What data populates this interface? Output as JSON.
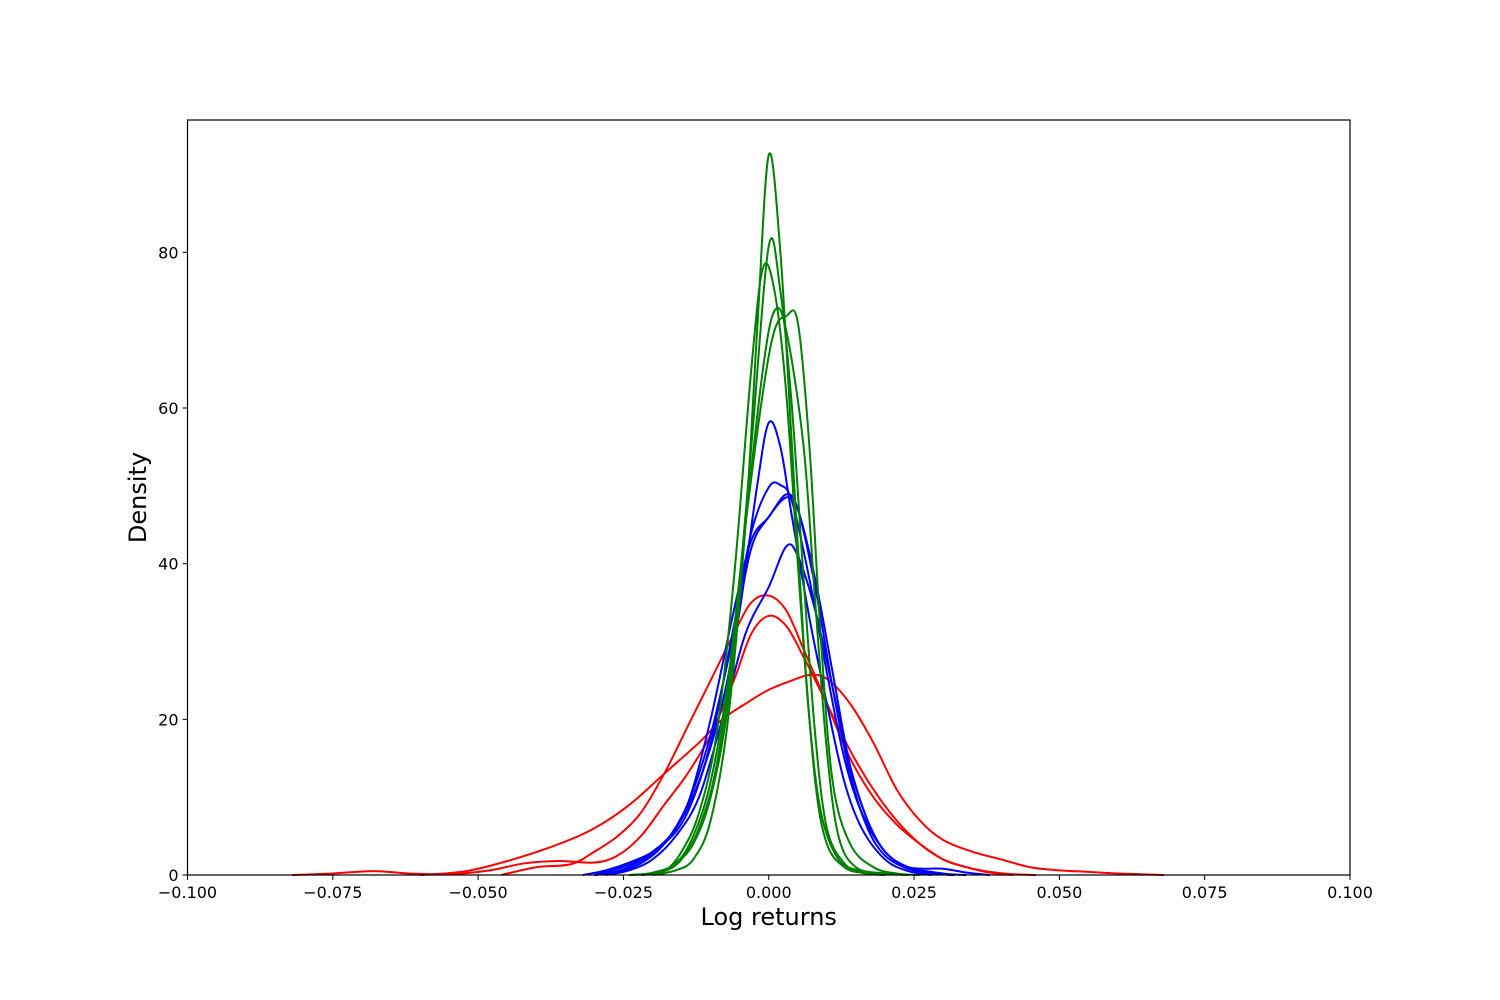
{
  "chart_data": {
    "type": "line",
    "title": "",
    "xlabel": "Log returns",
    "ylabel": "Density",
    "xlim": [
      -0.1,
      0.1
    ],
    "ylim": [
      0,
      97
    ],
    "xticks": [
      -0.1,
      -0.075,
      -0.05,
      -0.025,
      0.0,
      0.025,
      0.05,
      0.075,
      0.1
    ],
    "xtick_labels": [
      "−0.100",
      "−0.075",
      "−0.050",
      "−0.025",
      "0.000",
      "0.025",
      "0.050",
      "0.075",
      "0.100"
    ],
    "yticks": [
      0,
      20,
      40,
      60,
      80
    ],
    "ytick_labels": [
      "0",
      "20",
      "40",
      "60",
      "80"
    ],
    "grid": false,
    "legend": "none",
    "colors": {
      "red": "#ff0000",
      "blue": "#0000ff",
      "green": "#008000"
    },
    "series": [
      {
        "color": "red",
        "points": [
          [
            -0.082,
            0
          ],
          [
            -0.075,
            0.2
          ],
          [
            -0.068,
            0.5
          ],
          [
            -0.062,
            0.2
          ],
          [
            -0.055,
            0.1
          ],
          [
            -0.048,
            0.6
          ],
          [
            -0.042,
            1.5
          ],
          [
            -0.036,
            1.8
          ],
          [
            -0.03,
            1.6
          ],
          [
            -0.026,
            2.5
          ],
          [
            -0.022,
            5
          ],
          [
            -0.018,
            9
          ],
          [
            -0.014,
            13
          ],
          [
            -0.01,
            18
          ],
          [
            -0.006,
            25
          ],
          [
            -0.003,
            31
          ],
          [
            0.0,
            33.3
          ],
          [
            0.003,
            32
          ],
          [
            0.006,
            28
          ],
          [
            0.01,
            22
          ],
          [
            0.014,
            16
          ],
          [
            0.018,
            11
          ],
          [
            0.022,
            7
          ],
          [
            0.026,
            4
          ],
          [
            0.03,
            2
          ],
          [
            0.034,
            1
          ],
          [
            0.038,
            0.4
          ],
          [
            0.042,
            0.1
          ],
          [
            0.046,
            0
          ]
        ]
      },
      {
        "color": "red",
        "points": [
          [
            -0.06,
            0
          ],
          [
            -0.052,
            0.5
          ],
          [
            -0.044,
            2
          ],
          [
            -0.036,
            4
          ],
          [
            -0.03,
            6
          ],
          [
            -0.024,
            9
          ],
          [
            -0.018,
            13
          ],
          [
            -0.012,
            17
          ],
          [
            -0.008,
            20
          ],
          [
            -0.004,
            22
          ],
          [
            0.0,
            23.8
          ],
          [
            0.004,
            25
          ],
          [
            0.007,
            25.7
          ],
          [
            0.01,
            25.2
          ],
          [
            0.014,
            22
          ],
          [
            0.018,
            17
          ],
          [
            0.022,
            11
          ],
          [
            0.026,
            7
          ],
          [
            0.03,
            4.5
          ],
          [
            0.035,
            3
          ],
          [
            0.04,
            2
          ],
          [
            0.045,
            1
          ],
          [
            0.05,
            0.6
          ],
          [
            0.055,
            0.4
          ],
          [
            0.06,
            0.2
          ],
          [
            0.068,
            0
          ]
        ]
      },
      {
        "color": "red",
        "points": [
          [
            -0.046,
            0
          ],
          [
            -0.04,
            1
          ],
          [
            -0.034,
            1.4
          ],
          [
            -0.03,
            3
          ],
          [
            -0.026,
            5
          ],
          [
            -0.022,
            8
          ],
          [
            -0.018,
            13
          ],
          [
            -0.014,
            19
          ],
          [
            -0.01,
            25
          ],
          [
            -0.006,
            31
          ],
          [
            -0.003,
            35
          ],
          [
            0.0,
            35.9
          ],
          [
            0.003,
            34
          ],
          [
            0.006,
            29
          ],
          [
            0.01,
            22
          ],
          [
            0.014,
            15
          ],
          [
            0.018,
            10
          ],
          [
            0.022,
            6.5
          ],
          [
            0.026,
            4
          ],
          [
            0.03,
            2
          ],
          [
            0.034,
            1
          ],
          [
            0.038,
            0.3
          ],
          [
            0.042,
            0
          ]
        ]
      },
      {
        "color": "blue",
        "points": [
          [
            -0.032,
            0
          ],
          [
            -0.028,
            0.6
          ],
          [
            -0.024,
            1.6
          ],
          [
            -0.02,
            3
          ],
          [
            -0.016,
            6
          ],
          [
            -0.012,
            12
          ],
          [
            -0.008,
            22
          ],
          [
            -0.005,
            34
          ],
          [
            -0.002,
            50
          ],
          [
            0.0,
            58.1
          ],
          [
            0.002,
            55
          ],
          [
            0.004,
            46
          ],
          [
            0.007,
            33
          ],
          [
            0.01,
            22
          ],
          [
            0.013,
            12
          ],
          [
            0.016,
            6
          ],
          [
            0.02,
            2
          ],
          [
            0.024,
            0.5
          ],
          [
            0.028,
            0
          ]
        ]
      },
      {
        "color": "blue",
        "points": [
          [
            -0.03,
            0
          ],
          [
            -0.026,
            0.8
          ],
          [
            -0.022,
            2
          ],
          [
            -0.018,
            4
          ],
          [
            -0.014,
            8
          ],
          [
            -0.01,
            17
          ],
          [
            -0.006,
            32
          ],
          [
            -0.003,
            44
          ],
          [
            0.0,
            49.8
          ],
          [
            0.002,
            50.1
          ],
          [
            0.004,
            48
          ],
          [
            0.007,
            38
          ],
          [
            0.01,
            26
          ],
          [
            0.013,
            15
          ],
          [
            0.016,
            8
          ],
          [
            0.02,
            3
          ],
          [
            0.024,
            1
          ],
          [
            0.028,
            0.2
          ],
          [
            0.032,
            0
          ]
        ]
      },
      {
        "color": "blue",
        "points": [
          [
            -0.03,
            0
          ],
          [
            -0.026,
            0.5
          ],
          [
            -0.022,
            1.8
          ],
          [
            -0.018,
            4
          ],
          [
            -0.014,
            9
          ],
          [
            -0.01,
            20
          ],
          [
            -0.006,
            34
          ],
          [
            -0.003,
            43
          ],
          [
            0.0,
            46
          ],
          [
            0.003,
            48.9
          ],
          [
            0.005,
            47
          ],
          [
            0.008,
            38
          ],
          [
            0.011,
            26
          ],
          [
            0.014,
            14
          ],
          [
            0.017,
            7
          ],
          [
            0.02,
            3
          ],
          [
            0.024,
            1
          ],
          [
            0.03,
            0.8
          ],
          [
            0.034,
            0.3
          ],
          [
            0.038,
            0
          ]
        ]
      },
      {
        "color": "blue",
        "points": [
          [
            -0.028,
            0
          ],
          [
            -0.024,
            0.6
          ],
          [
            -0.02,
            2
          ],
          [
            -0.016,
            5
          ],
          [
            -0.012,
            10
          ],
          [
            -0.008,
            20
          ],
          [
            -0.004,
            31
          ],
          [
            0.0,
            37
          ],
          [
            0.003,
            42.2
          ],
          [
            0.005,
            41
          ],
          [
            0.008,
            34
          ],
          [
            0.011,
            24
          ],
          [
            0.014,
            14
          ],
          [
            0.017,
            7
          ],
          [
            0.02,
            3
          ],
          [
            0.024,
            1
          ],
          [
            0.03,
            0.2
          ],
          [
            0.034,
            0
          ]
        ]
      },
      {
        "color": "blue",
        "points": [
          [
            -0.03,
            0
          ],
          [
            -0.026,
            0.4
          ],
          [
            -0.022,
            1.5
          ],
          [
            -0.018,
            4
          ],
          [
            -0.014,
            9
          ],
          [
            -0.01,
            18
          ],
          [
            -0.006,
            31
          ],
          [
            -0.003,
            42
          ],
          [
            0.0,
            46
          ],
          [
            0.003,
            48.5
          ],
          [
            0.005,
            47
          ],
          [
            0.008,
            37
          ],
          [
            0.011,
            24
          ],
          [
            0.014,
            13
          ],
          [
            0.017,
            6
          ],
          [
            0.02,
            2.5
          ],
          [
            0.024,
            0.8
          ],
          [
            0.028,
            0.2
          ],
          [
            0.032,
            0
          ]
        ]
      },
      {
        "color": "green",
        "points": [
          [
            -0.02,
            0
          ],
          [
            -0.016,
            0.6
          ],
          [
            -0.013,
            2
          ],
          [
            -0.01,
            7
          ],
          [
            -0.007,
            20
          ],
          [
            -0.004,
            45
          ],
          [
            -0.002,
            70
          ],
          [
            0.0,
            92.5
          ],
          [
            0.002,
            80
          ],
          [
            0.004,
            55
          ],
          [
            0.006,
            30
          ],
          [
            0.008,
            12
          ],
          [
            0.01,
            4
          ],
          [
            0.013,
            1
          ],
          [
            0.016,
            0.3
          ],
          [
            0.02,
            0
          ]
        ]
      },
      {
        "color": "green",
        "points": [
          [
            -0.022,
            0
          ],
          [
            -0.018,
            0.5
          ],
          [
            -0.015,
            2
          ],
          [
            -0.012,
            6
          ],
          [
            -0.009,
            14
          ],
          [
            -0.006,
            30
          ],
          [
            -0.003,
            55
          ],
          [
            0.0,
            80.8
          ],
          [
            0.002,
            75
          ],
          [
            0.004,
            60
          ],
          [
            0.006,
            38
          ],
          [
            0.008,
            18
          ],
          [
            0.01,
            6
          ],
          [
            0.013,
            1.5
          ],
          [
            0.016,
            0.3
          ],
          [
            0.02,
            0
          ]
        ]
      },
      {
        "color": "green",
        "points": [
          [
            -0.022,
            0
          ],
          [
            -0.018,
            0.5
          ],
          [
            -0.015,
            3
          ],
          [
            -0.012,
            8
          ],
          [
            -0.009,
            18
          ],
          [
            -0.006,
            38
          ],
          [
            -0.003,
            65
          ],
          [
            -0.001,
            78
          ],
          [
            0.001,
            75
          ],
          [
            0.003,
            62
          ],
          [
            0.005,
            40
          ],
          [
            0.007,
            20
          ],
          [
            0.009,
            8
          ],
          [
            0.012,
            2
          ],
          [
            0.016,
            0.5
          ],
          [
            0.02,
            0
          ]
        ]
      },
      {
        "color": "green",
        "points": [
          [
            -0.024,
            0
          ],
          [
            -0.019,
            0.3
          ],
          [
            -0.016,
            1.5
          ],
          [
            -0.013,
            4
          ],
          [
            -0.01,
            10
          ],
          [
            -0.007,
            22
          ],
          [
            -0.004,
            45
          ],
          [
            -0.001,
            65
          ],
          [
            0.001,
            72.5
          ],
          [
            0.003,
            70
          ],
          [
            0.006,
            55
          ],
          [
            0.008,
            35
          ],
          [
            0.01,
            16
          ],
          [
            0.012,
            5
          ],
          [
            0.015,
            1
          ],
          [
            0.02,
            0.2
          ],
          [
            0.024,
            0
          ]
        ]
      },
      {
        "color": "green",
        "points": [
          [
            -0.024,
            0
          ],
          [
            -0.02,
            0.3
          ],
          [
            -0.016,
            1.5
          ],
          [
            -0.013,
            5
          ],
          [
            -0.01,
            12
          ],
          [
            -0.007,
            25
          ],
          [
            -0.004,
            45
          ],
          [
            -0.001,
            62
          ],
          [
            0.001,
            70
          ],
          [
            0.003,
            71.8
          ],
          [
            0.005,
            71
          ],
          [
            0.007,
            55
          ],
          [
            0.009,
            30
          ],
          [
            0.011,
            12
          ],
          [
            0.014,
            4
          ],
          [
            0.018,
            1
          ],
          [
            0.022,
            0.2
          ],
          [
            0.026,
            0
          ]
        ]
      }
    ]
  }
}
